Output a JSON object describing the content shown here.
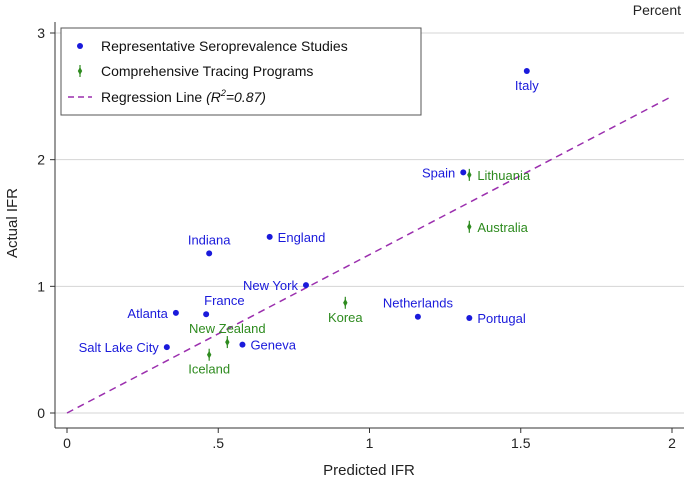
{
  "chart_data": {
    "type": "scatter",
    "unit_label": "Percent",
    "xlabel": "Predicted IFR",
    "ylabel": "Actual IFR",
    "xlim": [
      0,
      2
    ],
    "ylim": [
      0,
      3
    ],
    "x_ticks": [
      {
        "value": 0,
        "label": "0"
      },
      {
        "value": 0.5,
        "label": ".5"
      },
      {
        "value": 1,
        "label": "1"
      },
      {
        "value": 1.5,
        "label": "1.5"
      },
      {
        "value": 2,
        "label": "2"
      }
    ],
    "y_ticks": [
      {
        "value": 0,
        "label": "0"
      },
      {
        "value": 1,
        "label": "1"
      },
      {
        "value": 2,
        "label": "2"
      },
      {
        "value": 3,
        "label": "3"
      }
    ],
    "grid": "horizontal",
    "legend_position": "top-left",
    "legend": {
      "series1": "Representative Seroprevalence Studies",
      "series2": "Comprehensive Tracing Programs",
      "regression_prefix": "Regression Line ",
      "r2_open": "(R",
      "r2_sup": "2",
      "r2_close": "=0.87)"
    },
    "colors": {
      "seroprevalence": "#1a1adb",
      "tracing": "#2e8b1f",
      "regression": "#9b2fae",
      "grid": "#d4d4d4"
    },
    "series": [
      {
        "name": "Representative Seroprevalence Studies",
        "marker": "dot",
        "points": [
          {
            "label": "Italy",
            "x": 1.52,
            "y": 2.7,
            "label_pos": "below"
          },
          {
            "label": "Spain",
            "x": 1.31,
            "y": 1.9,
            "label_pos": "left"
          },
          {
            "label": "England",
            "x": 0.67,
            "y": 1.39,
            "label_pos": "right"
          },
          {
            "label": "Indiana",
            "x": 0.47,
            "y": 1.26,
            "label_pos": "above"
          },
          {
            "label": "New York",
            "x": 0.79,
            "y": 1.01,
            "label_pos": "left"
          },
          {
            "label": "Atlanta",
            "x": 0.36,
            "y": 0.79,
            "label_pos": "left"
          },
          {
            "label": "France",
            "x": 0.46,
            "y": 0.78,
            "label_pos": "above-right"
          },
          {
            "label": "Netherlands",
            "x": 1.16,
            "y": 0.76,
            "label_pos": "above"
          },
          {
            "label": "Portugal",
            "x": 1.33,
            "y": 0.75,
            "label_pos": "right"
          },
          {
            "label": "Geneva",
            "x": 0.58,
            "y": 0.54,
            "label_pos": "right"
          },
          {
            "label": "Salt Lake City",
            "x": 0.33,
            "y": 0.52,
            "label_pos": "left"
          }
        ]
      },
      {
        "name": "Comprehensive Tracing Programs",
        "marker": "spike",
        "points": [
          {
            "label": "Lithuania",
            "x": 1.33,
            "y": 1.88,
            "label_pos": "right"
          },
          {
            "label": "Australia",
            "x": 1.33,
            "y": 1.47,
            "label_pos": "right"
          },
          {
            "label": "Korea",
            "x": 0.92,
            "y": 0.87,
            "label_pos": "below"
          },
          {
            "label": "New Zealand",
            "x": 0.53,
            "y": 0.56,
            "label_pos": "above"
          },
          {
            "label": "Iceland",
            "x": 0.47,
            "y": 0.46,
            "label_pos": "below"
          }
        ]
      }
    ],
    "regression": {
      "x": [
        0,
        2
      ],
      "y": [
        0,
        2.5
      ]
    }
  }
}
